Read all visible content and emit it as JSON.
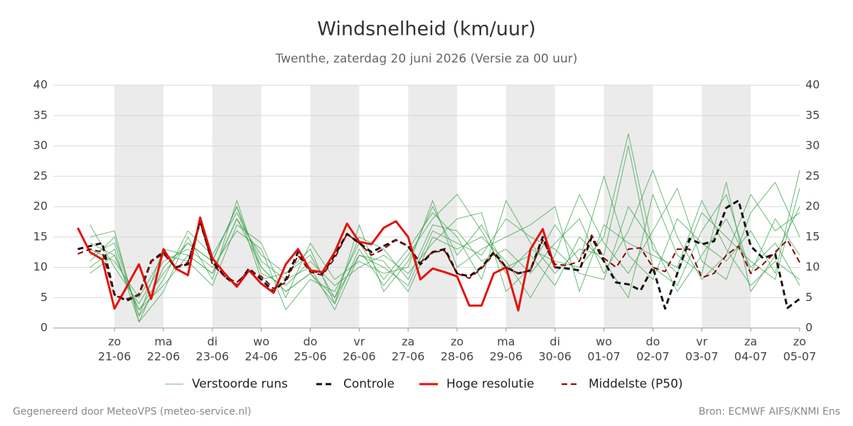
{
  "chart_data": {
    "type": "line",
    "title": "Windsnelheid (km/uur)",
    "subtitle": "Twenthe, zaterdag 20 juni 2026 (Versie za 00 uur)",
    "footer_left": "Gegenereerd door MeteoVPS (meteo-service.nl)",
    "footer_right": "Bron: ECMWF AIFS/KNMI Ens",
    "xlim": [
      -6,
      360
    ],
    "xticks": [
      {
        "value": 24,
        "label": "zo",
        "date": "21-06"
      },
      {
        "value": 48,
        "label": "ma",
        "date": "22-06"
      },
      {
        "value": 72,
        "label": "di",
        "date": "23-06"
      },
      {
        "value": 96,
        "label": "wo",
        "date": "24-06"
      },
      {
        "value": 120,
        "label": "do",
        "date": "25-06"
      },
      {
        "value": 144,
        "label": "vr",
        "date": "26-06"
      },
      {
        "value": 168,
        "label": "za",
        "date": "27-06"
      },
      {
        "value": 192,
        "label": "zo",
        "date": "28-06"
      },
      {
        "value": 216,
        "label": "ma",
        "date": "29-06"
      },
      {
        "value": 240,
        "label": "di",
        "date": "30-06"
      },
      {
        "value": 264,
        "label": "wo",
        "date": "01-07"
      },
      {
        "value": 288,
        "label": "do",
        "date": "02-07"
      },
      {
        "value": 312,
        "label": "vr",
        "date": "03-07"
      },
      {
        "value": 336,
        "label": "za",
        "date": "04-07"
      },
      {
        "value": 360,
        "label": "zo",
        "date": "05-07"
      }
    ],
    "ylim": [
      0,
      40
    ],
    "yticks": [
      0,
      5,
      10,
      15,
      20,
      25,
      30,
      35,
      40
    ],
    "y2lim": [
      0,
      40
    ],
    "y2ticks": [
      0,
      5,
      10,
      15,
      20,
      25,
      30,
      35,
      40
    ],
    "grid": true,
    "series": [
      {
        "name": "Verstoorde runs",
        "color": "#3aa14a",
        "dashed": false,
        "width": 1,
        "x": [
          12,
          24,
          36,
          48,
          60,
          72,
          84,
          96,
          108,
          120,
          132,
          144,
          156,
          168,
          180,
          192,
          204,
          216,
          228,
          240,
          252,
          264,
          276,
          288,
          300,
          312,
          324,
          336,
          348,
          360
        ],
        "runs": [
          [
            14,
            12,
            3,
            9,
            14,
            11,
            20,
            10,
            6,
            9,
            5,
            12,
            10,
            7,
            16,
            14,
            12,
            18,
            15,
            13,
            9,
            8,
            20,
            14,
            6,
            12,
            18,
            10,
            14,
            7
          ],
          [
            11,
            15,
            2,
            13,
            12,
            9,
            18,
            12,
            9,
            13,
            4,
            17,
            6,
            11,
            20,
            12,
            17,
            10,
            12,
            7,
            15,
            11,
            5,
            22,
            12,
            9,
            24,
            6,
            12,
            20
          ],
          [
            10,
            13,
            1,
            6,
            15,
            8,
            21,
            9,
            7,
            11,
            7,
            10,
            12,
            9,
            14,
            18,
            19,
            6,
            10,
            17,
            11,
            25,
            12,
            8,
            18,
            14,
            11,
            16,
            9,
            26
          ],
          [
            17,
            10,
            4,
            11,
            13,
            10,
            16,
            13,
            3,
            8,
            6,
            14,
            8,
            13,
            19,
            15,
            8,
            21,
            14,
            9,
            13,
            12,
            30,
            10,
            7,
            16,
            22,
            9,
            18,
            12
          ],
          [
            12,
            14,
            2,
            8,
            16,
            12,
            19,
            11,
            8,
            10,
            3,
            12,
            11,
            6,
            15,
            13,
            15,
            11,
            5,
            12,
            22,
            14,
            9,
            16,
            23,
            11,
            8,
            19,
            24,
            15
          ],
          [
            13,
            11,
            5,
            12,
            11,
            7,
            17,
            14,
            5,
            14,
            8,
            11,
            9,
            10,
            21,
            10,
            13,
            15,
            17,
            20,
            6,
            17,
            14,
            12,
            10,
            21,
            13,
            7,
            11,
            8
          ],
          [
            15,
            16,
            1,
            10,
            14,
            11,
            20,
            8,
            9,
            12,
            5,
            15,
            13,
            8,
            17,
            16,
            11,
            13,
            9,
            14,
            18,
            9,
            16,
            26,
            15,
            8,
            12,
            22,
            16,
            19
          ],
          [
            9,
            12,
            3,
            7,
            12,
            9,
            18,
            10,
            6,
            9,
            4,
            13,
            7,
            12,
            18,
            22,
            16,
            9,
            13,
            11,
            10,
            15,
            32,
            13,
            9,
            19,
            15,
            11,
            8,
            23
          ]
        ]
      },
      {
        "name": "Controle",
        "color": "#111111",
        "dashed": true,
        "width": 3,
        "x": [
          6,
          12,
          18,
          24,
          30,
          36,
          42,
          48,
          54,
          60,
          66,
          72,
          78,
          84,
          90,
          96,
          102,
          108,
          114,
          120,
          126,
          132,
          138,
          144,
          150,
          156,
          162,
          168,
          174,
          180,
          186,
          192,
          198,
          204,
          210,
          216,
          222,
          228,
          234,
          240,
          246,
          252,
          258,
          264,
          270,
          276,
          282,
          288,
          294,
          300,
          306,
          312,
          318,
          324,
          330,
          336,
          342,
          348,
          354,
          360
        ],
        "values": [
          13,
          13.5,
          14,
          5.5,
          4.5,
          5.5,
          11,
          12.5,
          10,
          10.5,
          17.5,
          11,
          8.5,
          7,
          9.8,
          8,
          6,
          8,
          12.5,
          9.5,
          9,
          12,
          15.5,
          14,
          12.5,
          13.5,
          14.5,
          13.5,
          10.5,
          12.5,
          13,
          9,
          8.5,
          10,
          12.5,
          10,
          9,
          9.5,
          15,
          10,
          9.8,
          9.5,
          15,
          11,
          7.5,
          7.2,
          6.2,
          10,
          3.2,
          9,
          14.7,
          13.8,
          14.3,
          19.8,
          21,
          13.5,
          11.5,
          12.2,
          3.3,
          4.8
        ]
      },
      {
        "name": "Hoge resolutie",
        "color": "#e3120b",
        "dashed": false,
        "width": 3,
        "x": [
          6,
          12,
          18,
          24,
          30,
          36,
          42,
          48,
          54,
          60,
          66,
          72,
          78,
          84,
          90,
          96,
          102,
          108,
          114,
          120,
          126,
          132,
          138,
          144,
          150,
          156,
          162,
          168,
          174,
          180,
          186,
          192,
          198,
          204,
          210,
          216,
          222,
          228,
          234,
          240
        ],
        "values": [
          16.5,
          12.5,
          11.3,
          3.2,
          6.8,
          10.5,
          4.8,
          13,
          9.8,
          8.7,
          18.2,
          11.5,
          9,
          6.8,
          9.5,
          7.3,
          5.8,
          10.5,
          13,
          9.5,
          9.2,
          12.5,
          17.2,
          14.2,
          13.8,
          16.5,
          17.6,
          15,
          8,
          9.8,
          9.2,
          8.5,
          3.7,
          3.7,
          9,
          10,
          2.9,
          13,
          16.3,
          9.9
        ]
      },
      {
        "name": "Middelste (P50)",
        "color": "#8b0000",
        "dashed": true,
        "width": 2,
        "x": [
          6,
          12,
          18,
          24,
          30,
          36,
          42,
          48,
          54,
          60,
          66,
          72,
          78,
          84,
          90,
          96,
          102,
          108,
          114,
          120,
          126,
          132,
          138,
          144,
          150,
          156,
          162,
          168,
          174,
          180,
          186,
          192,
          198,
          204,
          210,
          216,
          222,
          228,
          234,
          240,
          246,
          252,
          258,
          264,
          270,
          276,
          282,
          288,
          294,
          300,
          306,
          312,
          318,
          324,
          330,
          336,
          342,
          348,
          354,
          360
        ],
        "values": [
          12.2,
          13,
          12.5,
          5.3,
          4.8,
          5.5,
          11,
          12.2,
          10,
          10.8,
          17.5,
          10.5,
          8.5,
          7.5,
          9.5,
          8.5,
          6.5,
          7.5,
          12,
          9.2,
          8.7,
          11.5,
          15.5,
          14,
          12,
          13,
          14.5,
          13.5,
          10.8,
          12.5,
          12.7,
          9,
          8.2,
          9.8,
          12.2,
          10,
          9,
          9.5,
          14.5,
          10.5,
          10.3,
          11,
          15.3,
          11.5,
          10,
          13,
          13.2,
          10,
          9.3,
          13,
          13,
          8.3,
          9,
          12,
          13.5,
          9,
          10.5,
          12.5,
          14.5,
          10.8
        ]
      }
    ]
  }
}
